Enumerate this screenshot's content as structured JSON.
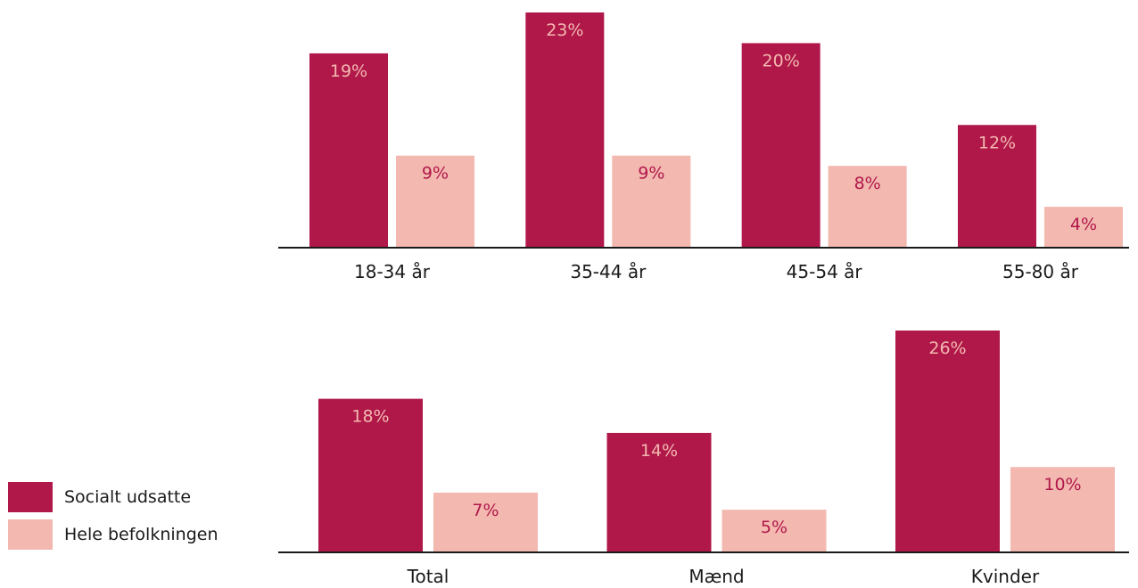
{
  "colors": {
    "socialt_udsatte": "#b0184a",
    "hele_befolkningen": "#f3b8b0",
    "axis": "#1a1a1a"
  },
  "legend": [
    {
      "label": "Socialt udsatte",
      "color": "#b0184a"
    },
    {
      "label": "Hele befolkningen",
      "color": "#f3b8b0"
    }
  ],
  "chart_data": [
    {
      "type": "bar",
      "categories": [
        "18-34 år",
        "35-44 år",
        "45-54 år",
        "55-80 år"
      ],
      "series": [
        {
          "name": "Socialt udsatte",
          "values": [
            19,
            23,
            20,
            12
          ],
          "labels": [
            "19%",
            "23%",
            "20%",
            "12%"
          ]
        },
        {
          "name": "Hele befolkningen",
          "values": [
            9,
            9,
            8,
            4
          ],
          "labels": [
            "9%",
            "9%",
            "8%",
            "4%"
          ]
        }
      ],
      "unit": "%",
      "ylim": [
        0,
        23
      ],
      "grid": false,
      "legend": "left"
    },
    {
      "type": "bar",
      "categories": [
        "Total",
        "Mænd",
        "Kvinder"
      ],
      "series": [
        {
          "name": "Socialt udsatte",
          "values": [
            18,
            14,
            26
          ],
          "labels": [
            "18%",
            "14%",
            "26%"
          ]
        },
        {
          "name": "Hele befolkningen",
          "values": [
            7,
            5,
            10
          ],
          "labels": [
            "7%",
            "5%",
            "10%"
          ]
        }
      ],
      "unit": "%",
      "ylim": [
        0,
        26
      ],
      "grid": false,
      "legend": "left"
    }
  ]
}
